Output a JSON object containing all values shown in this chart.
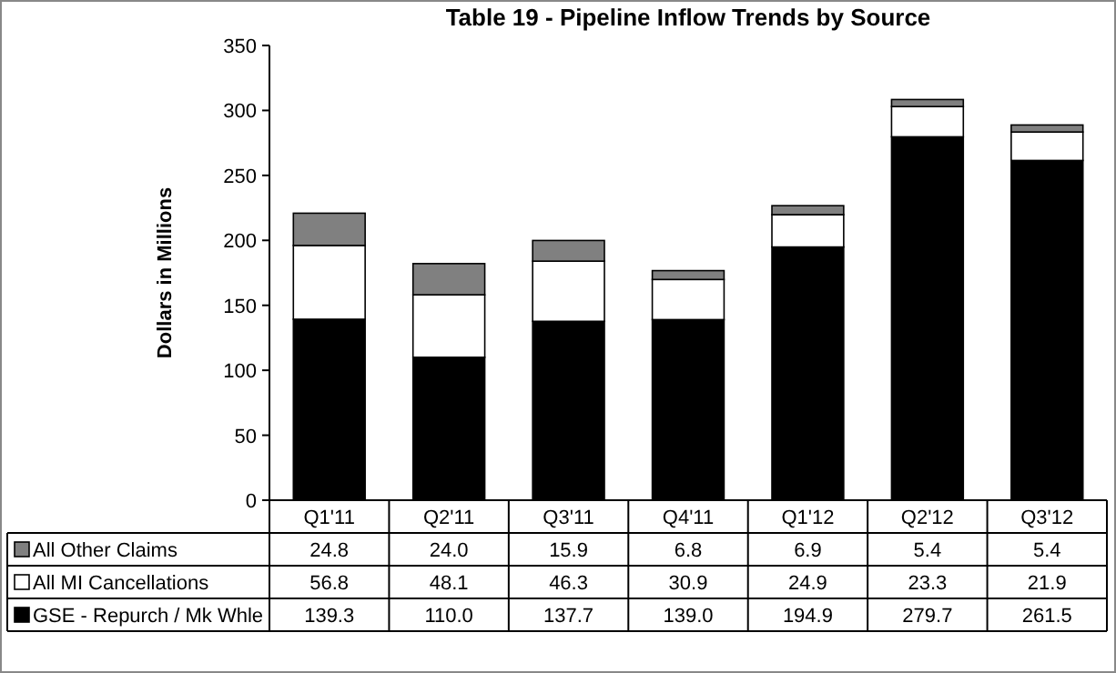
{
  "chart_data": {
    "type": "bar",
    "title": "Table 19 -  Pipeline Inflow Trends by Source",
    "ylabel": "Dollars in Millions",
    "categories": [
      "Q1'11",
      "Q2'11",
      "Q3'11",
      "Q4'11",
      "Q1'12",
      "Q2'12",
      "Q3'12"
    ],
    "stacked": true,
    "ylim": [
      0,
      350
    ],
    "yticks": [
      0,
      50,
      100,
      150,
      200,
      250,
      300,
      350
    ],
    "grid": false,
    "legend": "bottom left",
    "series": [
      {
        "name": "GSE - Repurch / Mk Whle",
        "color": "#000000",
        "values": [
          139.3,
          110.0,
          137.7,
          139.0,
          194.9,
          279.7,
          261.5
        ],
        "value_labels": [
          "139.3",
          "110.0",
          "137.7",
          "139.0",
          "194.9",
          "279.7",
          "261.5"
        ]
      },
      {
        "name": "All MI Cancellations",
        "color": "#ffffff",
        "values": [
          56.8,
          48.1,
          46.3,
          30.9,
          24.9,
          23.3,
          21.9
        ],
        "value_labels": [
          "56.8",
          "48.1",
          "46.3",
          "30.9",
          "24.9",
          "23.3",
          "21.9"
        ]
      },
      {
        "name": "All Other Claims",
        "color": "#808080",
        "values": [
          24.8,
          24.0,
          15.9,
          6.8,
          6.9,
          5.4,
          5.4
        ],
        "value_labels": [
          "24.8",
          "24.0",
          "15.9",
          "6.8",
          "6.9",
          "5.4",
          "5.4"
        ]
      }
    ]
  }
}
